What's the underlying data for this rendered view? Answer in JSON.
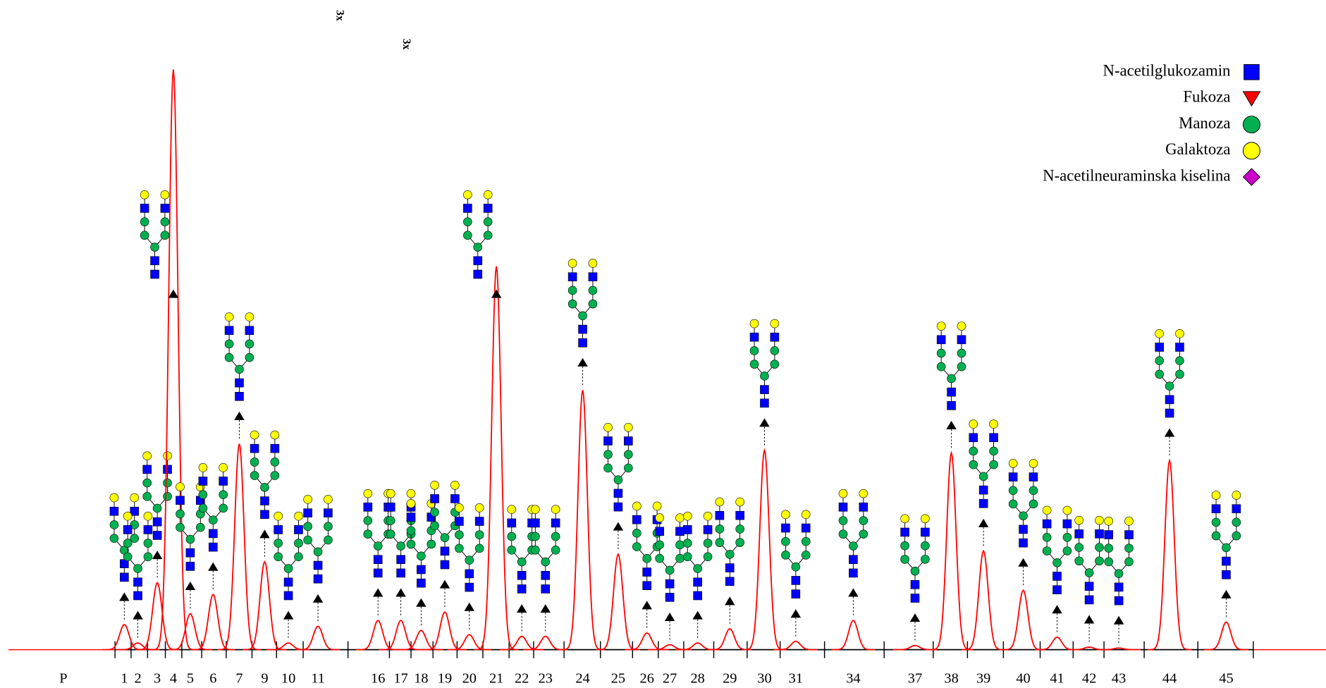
{
  "chart_data": {
    "type": "chromatogram",
    "categories": [
      "P",
      "1",
      "2",
      "3",
      "4",
      "5",
      "6",
      "7",
      "9",
      "10",
      "11",
      "16",
      "17",
      "18",
      "19",
      "20",
      "21",
      "22",
      "23",
      "24",
      "25",
      "26",
      "27",
      "28",
      "29",
      "30",
      "31",
      "34",
      "37",
      "38",
      "39",
      "40",
      "41",
      "42",
      "43",
      "44",
      "45"
    ],
    "values": [
      null,
      30,
      8,
      80,
      693,
      43,
      66,
      246,
      105,
      8,
      28,
      35,
      35,
      23,
      45,
      18,
      458,
      16,
      16,
      310,
      114,
      20,
      6,
      8,
      25,
      238,
      10,
      35,
      5,
      235,
      118,
      71,
      15,
      3,
      2,
      226,
      33
    ],
    "ylim": [
      0,
      700
    ],
    "color": "#ff0000",
    "annotations": [
      "3x",
      "3x"
    ],
    "legend": [
      {
        "name": "N-acetilglukozamin",
        "color": "#0000ff",
        "shape": "square"
      },
      {
        "name": "Fukoza",
        "color": "#ff0000",
        "shape": "triangle"
      },
      {
        "name": "Manoza",
        "color": "#00b050",
        "shape": "circle"
      },
      {
        "name": "Galaktoza",
        "color": "#ffff00",
        "shape": "circle"
      },
      {
        "name": "N-acetilneuraminska kiselina",
        "color": "#cc00cc",
        "shape": "diamond"
      }
    ]
  }
}
